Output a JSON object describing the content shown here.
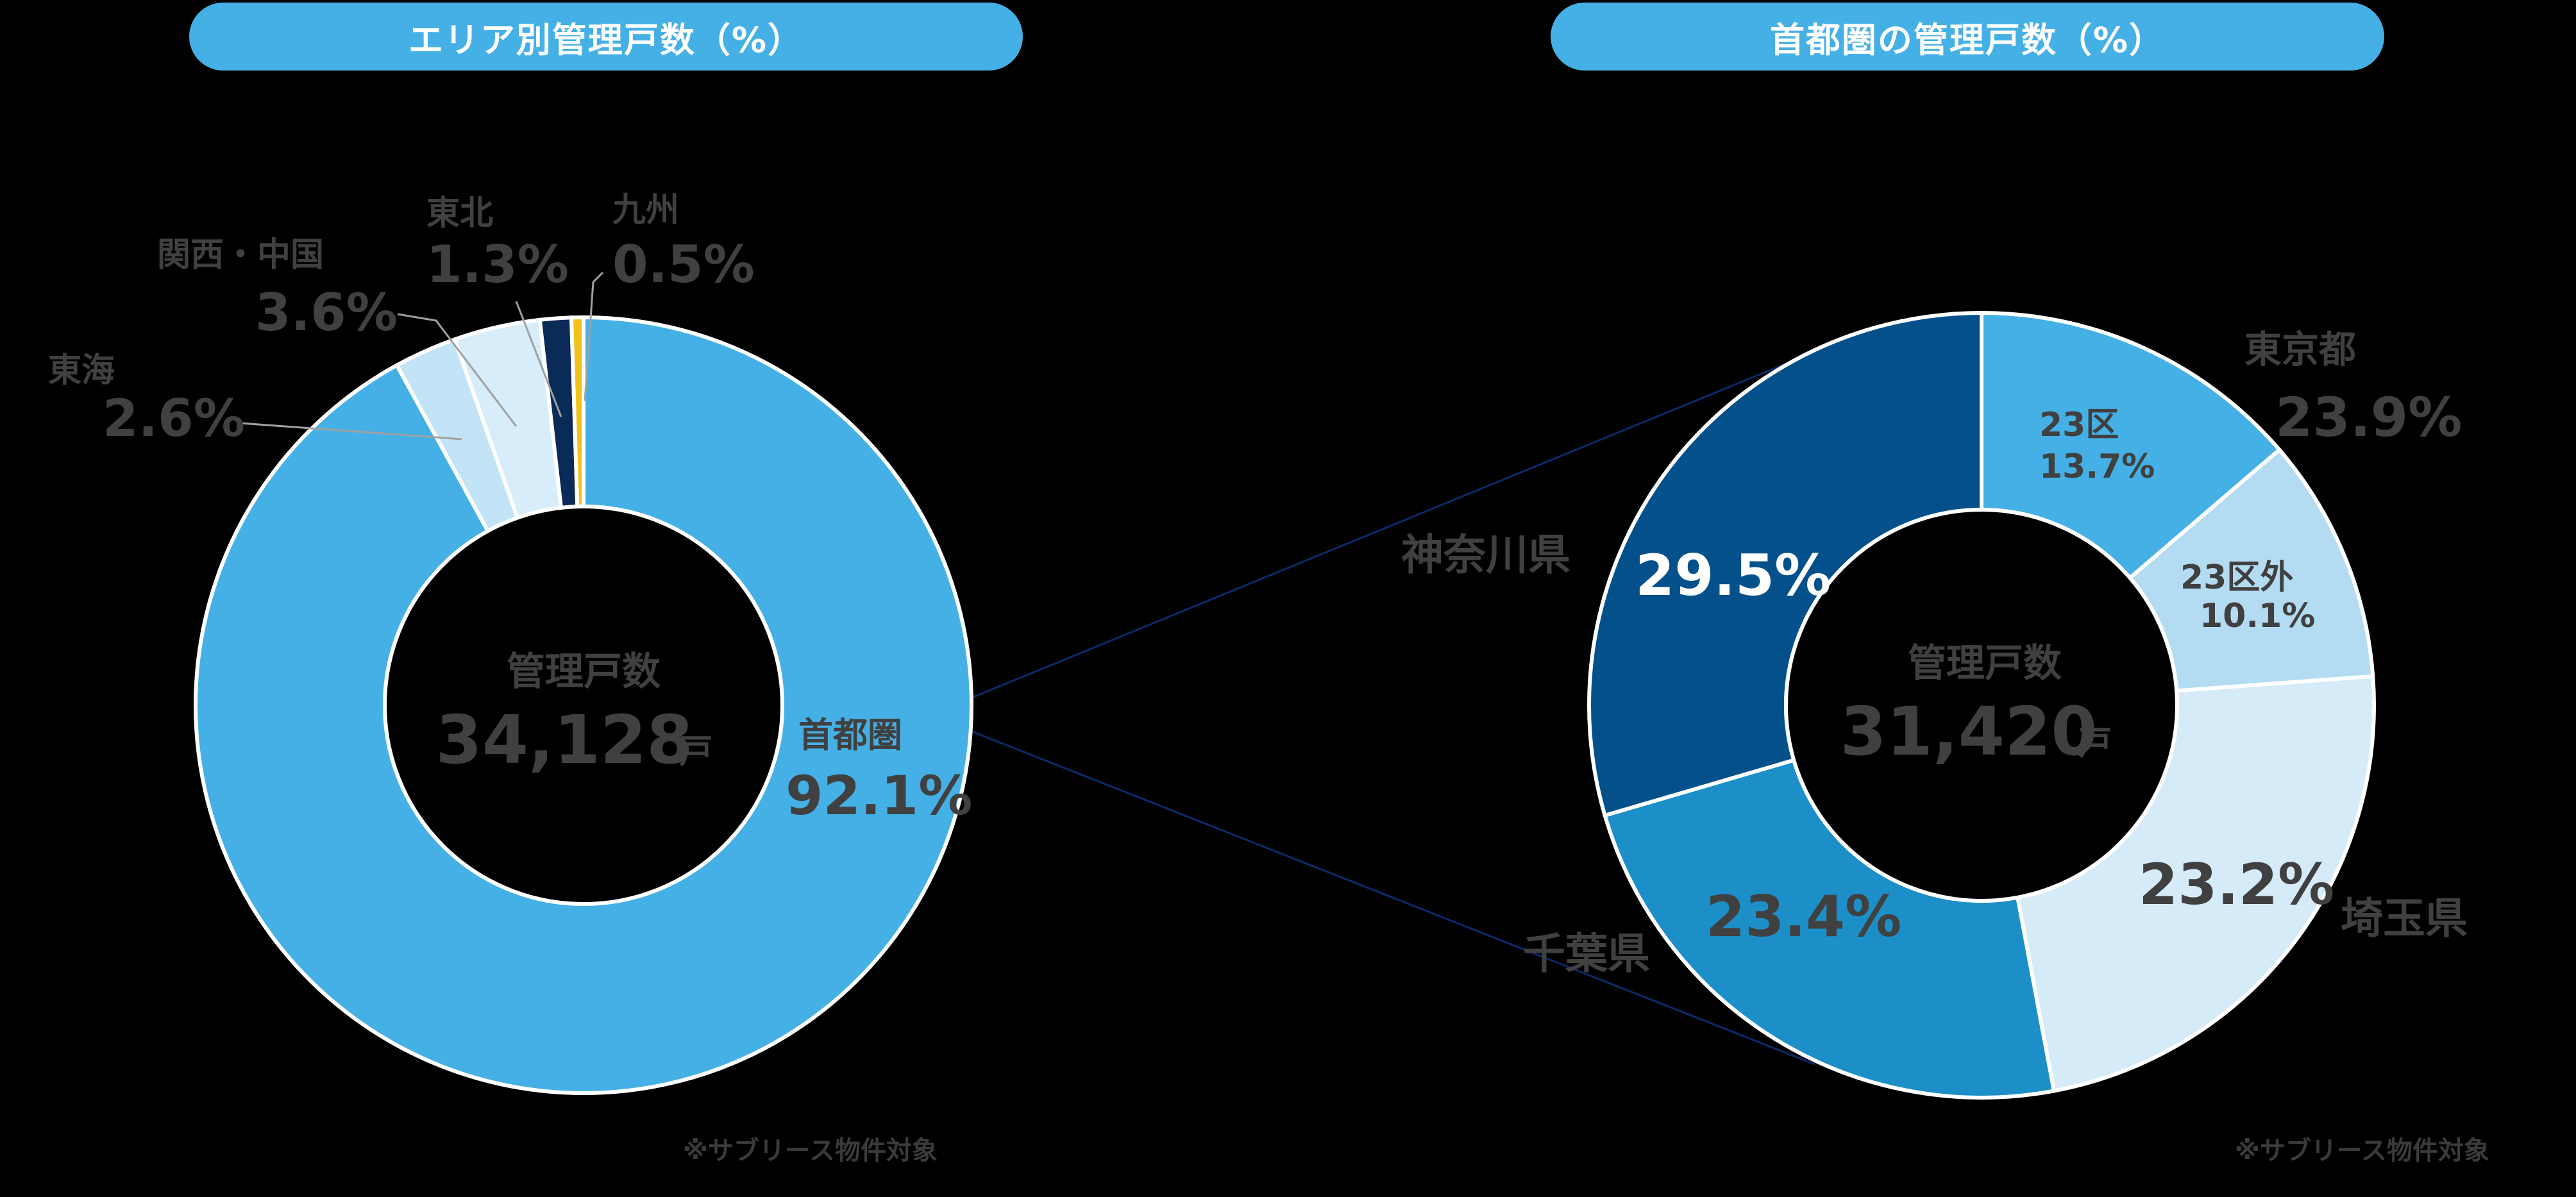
{
  "colors": {
    "pill": "#45b0e5",
    "label_text": "#404040",
    "shutoken": "#45b0e5",
    "tokai": "#c3e4f6",
    "kansai_chugoku": "#d7edf9",
    "tohoku": "#0a2a57",
    "kyushu": "#f2c21b",
    "kanagawa": "#03508b",
    "chiba": "#1d8fc8",
    "saitama": "#d5ebf8",
    "tokyo23": "#45b0e5",
    "tokyo_outside23": "#b3dcf3"
  },
  "left": {
    "title": "エリア別管理戸数（%）",
    "center_label": "管理戸数",
    "center_value": "34,128",
    "center_unit": "戸",
    "note": "※サブリース物件対象"
  },
  "right": {
    "title": "首都圏の管理戸数（%）",
    "center_label": "管理戸数",
    "center_value": "31,420",
    "center_unit": "戸",
    "note": "※サブリース物件対象"
  },
  "chart_data": [
    {
      "type": "pie",
      "variant": "donut",
      "title": "エリア別管理戸数（%）",
      "center_text": "管理戸数 34,128戸",
      "slices": [
        {
          "label": "首都圏",
          "value": 92.1,
          "display": "92.1%",
          "color": "#45b0e5"
        },
        {
          "label": "東海",
          "value": 2.6,
          "display": "2.6%",
          "color": "#c3e4f6"
        },
        {
          "label": "関西・中国",
          "value": 3.6,
          "display": "3.6%",
          "color": "#d7edf9"
        },
        {
          "label": "東北",
          "value": 1.3,
          "display": "1.3%",
          "color": "#0a2a57"
        },
        {
          "label": "九州",
          "value": 0.5,
          "display": "0.5%",
          "color": "#f2c21b"
        }
      ],
      "note": "※サブリース物件対象"
    },
    {
      "type": "pie",
      "variant": "donut",
      "title": "首都圏の管理戸数（%）",
      "center_text": "管理戸数 31,420戸",
      "slices": [
        {
          "label": "23区",
          "group": "東京都",
          "value": 13.7,
          "display": "13.7%",
          "color": "#45b0e5"
        },
        {
          "label": "23区外",
          "group": "東京都",
          "value": 10.1,
          "display": "10.1%",
          "color": "#b3dcf3"
        },
        {
          "label": "埼玉県",
          "value": 23.2,
          "display": "23.2%",
          "color": "#d5ebf8"
        },
        {
          "label": "千葉県",
          "value": 23.4,
          "display": "23.4%",
          "color": "#1d8fc8"
        },
        {
          "label": "神奈川県",
          "value": 29.5,
          "display": "29.5%",
          "color": "#03508b"
        }
      ],
      "group_totals": [
        {
          "label": "東京都",
          "value": 23.9,
          "display": "23.9%"
        }
      ],
      "note": "※サブリース物件対象"
    }
  ],
  "labels": {
    "shutoken_name": "首都圏",
    "shutoken_pct": "92.1%",
    "tokai_name": "東海",
    "tokai_pct": "2.6%",
    "kansai_name": "関西・中国",
    "kansai_pct": "3.6%",
    "tohoku_name": "東北",
    "tohoku_pct": "1.3%",
    "kyushu_name": "九州",
    "kyushu_pct": "0.5%",
    "tokyo_name": "東京都",
    "tokyo_pct": "23.9%",
    "ku23_name": "23区",
    "ku23_pct": "13.7%",
    "ku23out_name": "23区外",
    "ku23out_pct": "10.1%",
    "saitama_name": "埼玉県",
    "saitama_pct": "23.2%",
    "chiba_name": "千葉県",
    "chiba_pct": "23.4%",
    "kanagawa_name": "神奈川県",
    "kanagawa_pct": "29.5%"
  }
}
